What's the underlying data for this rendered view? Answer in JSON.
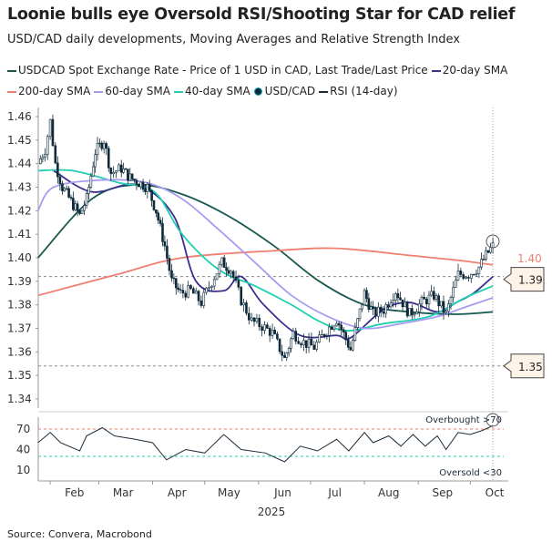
{
  "header": {
    "title": "Loonie bulls eye Oversold RSI/Shooting Star for CAD relief",
    "subtitle": "USD/CAD daily developments, Moving Averages and Relative Strength Index"
  },
  "legend": [
    {
      "label": "USDCAD Spot Exchange Rate - Price of 1 USD in CAD, Last Trade/Last Price",
      "color": "#17594f",
      "kind": "line"
    },
    {
      "label": "20-day SMA",
      "color": "#3b2f8f",
      "kind": "line"
    },
    {
      "label": "200-day SMA",
      "color": "#f07f6f",
      "kind": "line"
    },
    {
      "label": "60-day SMA",
      "color": "#a99cf0",
      "kind": "line"
    },
    {
      "label": "40-day SMA",
      "color": "#1fcfb0",
      "kind": "line"
    },
    {
      "label": "USD/CAD",
      "color": "#0e2a3a",
      "kind": "candle"
    },
    {
      "label": "RSI (14-day)",
      "color": "#1c2b3a",
      "kind": "line"
    }
  ],
  "footer": {
    "source": "Source: Convera, Macrobond"
  },
  "chart_data": [
    {
      "type": "line",
      "ylim": [
        1.34,
        1.465
      ],
      "yticks": [
        "1.46",
        "1.45",
        "1.44",
        "1.43",
        "1.42",
        "1.41",
        "1.40",
        "1.39",
        "1.38",
        "1.37",
        "1.36",
        "1.35",
        "1.34"
      ],
      "xticks": [
        "Feb",
        "Mar",
        "Apr",
        "May",
        "Jun",
        "Jul",
        "Aug",
        "Sep",
        "Oct"
      ],
      "xlabel": "2025",
      "grid": false,
      "annotations": {
        "last_200_sma": "1.40",
        "callout_upper": "1.39",
        "callout_lower": "1.35"
      },
      "callout_levels": [
        1.392,
        1.354
      ],
      "candles_close": [
        [
          "2025-01-25",
          1.44
        ],
        [
          "2025-01-29",
          1.446
        ],
        [
          "2025-02-01",
          1.458
        ],
        [
          "2025-02-04",
          1.44
        ],
        [
          "2025-02-08",
          1.43
        ],
        [
          "2025-02-13",
          1.424
        ],
        [
          "2025-02-18",
          1.418
        ],
        [
          "2025-02-22",
          1.425
        ],
        [
          "2025-02-27",
          1.445
        ],
        [
          "2025-03-04",
          1.45
        ],
        [
          "2025-03-08",
          1.436
        ],
        [
          "2025-03-14",
          1.438
        ],
        [
          "2025-03-19",
          1.434
        ],
        [
          "2025-03-24",
          1.432
        ],
        [
          "2025-03-29",
          1.43
        ],
        [
          "2025-04-03",
          1.42
        ],
        [
          "2025-04-08",
          1.405
        ],
        [
          "2025-04-12",
          1.39
        ],
        [
          "2025-04-17",
          1.385
        ],
        [
          "2025-04-23",
          1.386
        ],
        [
          "2025-04-29",
          1.381
        ],
        [
          "2025-05-05",
          1.39
        ],
        [
          "2025-05-11",
          1.398
        ],
        [
          "2025-05-16",
          1.395
        ],
        [
          "2025-05-22",
          1.382
        ],
        [
          "2025-05-28",
          1.373
        ],
        [
          "2025-06-03",
          1.371
        ],
        [
          "2025-06-09",
          1.368
        ],
        [
          "2025-06-16",
          1.357
        ],
        [
          "2025-06-21",
          1.368
        ],
        [
          "2025-06-27",
          1.364
        ],
        [
          "2025-07-03",
          1.362
        ],
        [
          "2025-07-09",
          1.368
        ],
        [
          "2025-07-16",
          1.374
        ],
        [
          "2025-07-24",
          1.361
        ],
        [
          "2025-08-01",
          1.385
        ],
        [
          "2025-08-06",
          1.376
        ],
        [
          "2025-08-12",
          1.378
        ],
        [
          "2025-08-19",
          1.386
        ],
        [
          "2025-08-27",
          1.376
        ],
        [
          "2025-09-03",
          1.381
        ],
        [
          "2025-09-10",
          1.384
        ],
        [
          "2025-09-17",
          1.376
        ],
        [
          "2025-09-24",
          1.393
        ],
        [
          "2025-09-30",
          1.393
        ],
        [
          "2025-10-06",
          1.396
        ],
        [
          "2025-10-10",
          1.401
        ],
        [
          "2025-10-14",
          1.405
        ]
      ],
      "series": [
        {
          "name": "USDCAD Spot Exchange Rate - Price of 1 USD in CAD, Last Trade/Last Price",
          "color": "#17594f",
          "points": [
            [
              "2025-01-25",
              1.4
            ],
            [
              "2025-02-25",
              1.425
            ],
            [
              "2025-03-23",
              1.431
            ],
            [
              "2025-04-18",
              1.427
            ],
            [
              "2025-05-14",
              1.418
            ],
            [
              "2025-06-10",
              1.405
            ],
            [
              "2025-07-06",
              1.39
            ],
            [
              "2025-08-01",
              1.38
            ],
            [
              "2025-08-27",
              1.377
            ],
            [
              "2025-09-23",
              1.376
            ],
            [
              "2025-10-14",
              1.377
            ]
          ]
        },
        {
          "name": "200-day SMA",
          "color": "#f07f6f",
          "points": [
            [
              "2025-01-25",
              1.384
            ],
            [
              "2025-03-12",
              1.393
            ],
            [
              "2025-04-18",
              1.4
            ],
            [
              "2025-06-10",
              1.403
            ],
            [
              "2025-07-16",
              1.404
            ],
            [
              "2025-08-27",
              1.401
            ],
            [
              "2025-09-23",
              1.399
            ],
            [
              "2025-10-14",
              1.397
            ]
          ]
        },
        {
          "name": "20-day SMA",
          "color": "#3b2f8f",
          "points": [
            [
              "2025-02-03",
              1.437
            ],
            [
              "2025-02-25",
              1.428
            ],
            [
              "2025-03-23",
              1.431
            ],
            [
              "2025-04-13",
              1.418
            ],
            [
              "2025-04-26",
              1.39
            ],
            [
              "2025-05-12",
              1.386
            ],
            [
              "2025-05-22",
              1.392
            ],
            [
              "2025-06-04",
              1.38
            ],
            [
              "2025-06-25",
              1.367
            ],
            [
              "2025-07-16",
              1.367
            ],
            [
              "2025-07-24",
              1.366
            ],
            [
              "2025-08-12",
              1.378
            ],
            [
              "2025-08-27",
              1.381
            ],
            [
              "2025-09-12",
              1.377
            ],
            [
              "2025-09-23",
              1.381
            ],
            [
              "2025-10-03",
              1.385
            ],
            [
              "2025-10-14",
              1.392
            ]
          ]
        },
        {
          "name": "40-day SMA",
          "color": "#1fcfb0",
          "points": [
            [
              "2025-01-25",
              1.437
            ],
            [
              "2025-02-14",
              1.437
            ],
            [
              "2025-03-12",
              1.432
            ],
            [
              "2025-04-02",
              1.428
            ],
            [
              "2025-04-18",
              1.41
            ],
            [
              "2025-05-09",
              1.395
            ],
            [
              "2025-05-30",
              1.388
            ],
            [
              "2025-06-20",
              1.38
            ],
            [
              "2025-07-06",
              1.373
            ],
            [
              "2025-07-22",
              1.369
            ],
            [
              "2025-08-12",
              1.372
            ],
            [
              "2025-09-07",
              1.375
            ],
            [
              "2025-09-28",
              1.383
            ],
            [
              "2025-10-14",
              1.388
            ]
          ]
        },
        {
          "name": "60-day SMA",
          "color": "#a99cf0",
          "points": [
            [
              "2025-01-25",
              1.42
            ],
            [
              "2025-02-03",
              1.43
            ],
            [
              "2025-03-02",
              1.433
            ],
            [
              "2025-03-28",
              1.432
            ],
            [
              "2025-04-18",
              1.425
            ],
            [
              "2025-05-09",
              1.412
            ],
            [
              "2025-05-30",
              1.398
            ],
            [
              "2025-06-20",
              1.384
            ],
            [
              "2025-07-11",
              1.375
            ],
            [
              "2025-08-01",
              1.37
            ],
            [
              "2025-08-22",
              1.372
            ],
            [
              "2025-09-12",
              1.375
            ],
            [
              "2025-09-28",
              1.379
            ],
            [
              "2025-10-14",
              1.383
            ]
          ]
        }
      ]
    },
    {
      "type": "line",
      "ylim": [
        0,
        80
      ],
      "yticks": [
        "70",
        "40",
        "10"
      ],
      "annotations": {
        "overbought": "Overbought >70",
        "oversold": "Oversold <30"
      },
      "levels": [
        70,
        30
      ],
      "series": [
        {
          "name": "RSI (14-day)",
          "color": "#1c2b3a",
          "points": [
            [
              "2025-01-25",
              50
            ],
            [
              "2025-02-01",
              65
            ],
            [
              "2025-02-07",
              50
            ],
            [
              "2025-02-18",
              38
            ],
            [
              "2025-02-22",
              60
            ],
            [
              "2025-03-03",
              72
            ],
            [
              "2025-03-10",
              60
            ],
            [
              "2025-03-22",
              55
            ],
            [
              "2025-04-01",
              50
            ],
            [
              "2025-04-09",
              25
            ],
            [
              "2025-04-20",
              40
            ],
            [
              "2025-05-01",
              35
            ],
            [
              "2025-05-12",
              62
            ],
            [
              "2025-05-22",
              40
            ],
            [
              "2025-06-05",
              35
            ],
            [
              "2025-06-16",
              22
            ],
            [
              "2025-06-25",
              45
            ],
            [
              "2025-07-05",
              38
            ],
            [
              "2025-07-16",
              55
            ],
            [
              "2025-07-23",
              38
            ],
            [
              "2025-08-01",
              65
            ],
            [
              "2025-08-06",
              50
            ],
            [
              "2025-08-15",
              60
            ],
            [
              "2025-08-22",
              45
            ],
            [
              "2025-08-29",
              62
            ],
            [
              "2025-09-05",
              45
            ],
            [
              "2025-09-12",
              60
            ],
            [
              "2025-09-17",
              40
            ],
            [
              "2025-09-24",
              65
            ],
            [
              "2025-10-01",
              62
            ],
            [
              "2025-10-08",
              68
            ],
            [
              "2025-10-14",
              75
            ]
          ]
        }
      ]
    }
  ]
}
